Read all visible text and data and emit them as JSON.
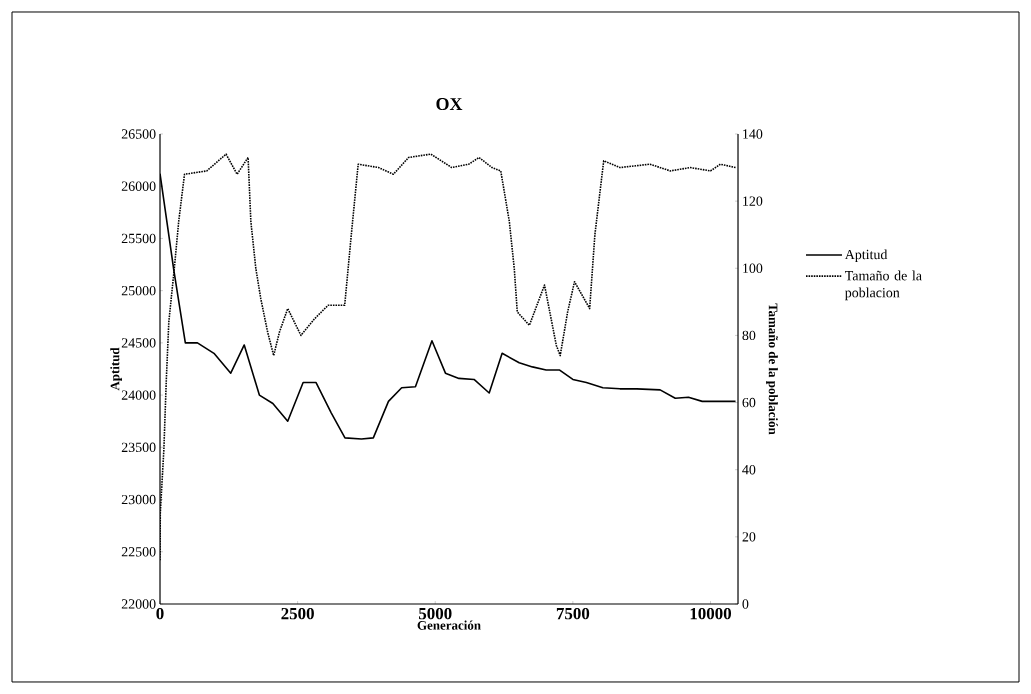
{
  "chart_data": {
    "type": "line",
    "title": "OX",
    "xlabel": "Generación",
    "ylabel": "Aptitud",
    "y2label": "Tamaño de la población",
    "xlim": [
      0,
      10500
    ],
    "xticks": [
      0,
      2500,
      5000,
      7500,
      10000
    ],
    "ylim": [
      22000,
      26500
    ],
    "yticks": [
      22000,
      22500,
      23000,
      23500,
      24000,
      24500,
      25000,
      25500,
      26000,
      26500
    ],
    "y2lim": [
      0,
      140
    ],
    "y2ticks": [
      0,
      20,
      40,
      60,
      80,
      100,
      120,
      140
    ],
    "grid": false,
    "legend": "right",
    "marker": "none",
    "series": [
      {
        "name": "Aptitud",
        "color": "#000000",
        "line_style": "solid",
        "x": [
          0,
          250,
          460,
          680,
          980,
          1285,
          1530,
          1805,
          2050,
          2320,
          2600,
          2835,
          3110,
          3360,
          3660,
          3875,
          4150,
          4390,
          4640,
          4940,
          5185,
          5430,
          5705,
          5980,
          6215,
          6525,
          6765,
          7015,
          7260,
          7500,
          7745,
          8045,
          8355,
          8660,
          9085,
          9360,
          9600,
          9850,
          10455
        ],
        "values": [
          26120,
          25200,
          24500,
          24500,
          24400,
          24210,
          24480,
          24000,
          23920,
          23750,
          24120,
          24120,
          23830,
          23590,
          23580,
          23590,
          23940,
          24070,
          24080,
          24520,
          24210,
          24160,
          24150,
          24020,
          24400,
          24310,
          24270,
          24240,
          24240,
          24150,
          24120,
          24070,
          24060,
          24060,
          24050,
          23970,
          23980,
          23940,
          23940
        ]
      },
      {
        "name": "Tamaño de la poblacion",
        "color": "#000000",
        "line_style": "dotted",
        "axis": "y2",
        "x": [
          0,
          5,
          70,
          115,
          160,
          260,
          340,
          445,
          850,
          1200,
          1400,
          1600,
          1650,
          1740,
          1830,
          1955,
          2065,
          2170,
          2320,
          2560,
          2810,
          3055,
          3355,
          3475,
          3600,
          3970,
          4240,
          4515,
          4920,
          5300,
          5610,
          5795,
          6030,
          6190,
          6345,
          6435,
          6490,
          6710,
          6985,
          7200,
          7270,
          7405,
          7530,
          7805,
          7900,
          8060,
          8355,
          8900,
          9270,
          9630,
          10000,
          10180,
          10455
        ],
        "values": [
          13,
          27,
          46,
          67,
          84,
          100,
          114,
          128,
          129,
          134,
          128,
          133,
          114,
          100,
          91,
          81,
          74,
          81,
          88,
          80,
          85,
          89,
          89,
          110,
          131,
          130,
          128,
          133,
          134,
          130,
          131,
          133,
          130,
          129,
          114,
          100,
          87,
          83,
          95,
          77,
          74,
          87,
          96,
          88,
          110,
          132,
          130,
          131,
          129,
          130,
          129,
          131,
          130
        ]
      }
    ]
  }
}
